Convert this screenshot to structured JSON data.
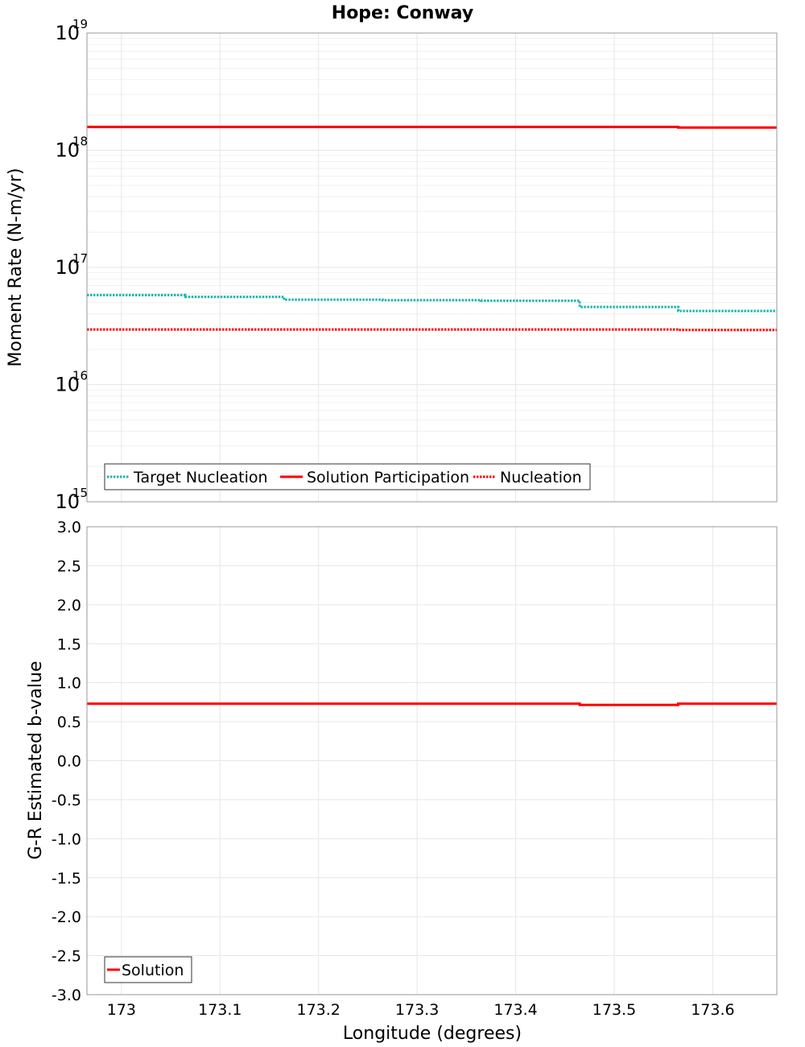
{
  "chart_data": [
    {
      "type": "line",
      "title": "Hope: Conway",
      "xlabel": "",
      "ylabel": "Moment Rate (N-m/yr)",
      "yscale": "log",
      "ylim": [
        1000000000000000.0,
        1e+19
      ],
      "xlim": [
        172.965,
        173.665
      ],
      "y_ticks": [
        {
          "base": "10",
          "exp": "15"
        },
        {
          "base": "10",
          "exp": "16"
        },
        {
          "base": "10",
          "exp": "17"
        },
        {
          "base": "10",
          "exp": "18"
        },
        {
          "base": "10",
          "exp": "19"
        }
      ],
      "bin_edges": [
        172.965,
        173.065,
        173.165,
        173.265,
        173.365,
        173.465,
        173.565,
        173.665
      ],
      "series": [
        {
          "name": "Target Nucleation",
          "color": "#1ab3b3",
          "style": "dotted",
          "values": [
            5.8e+16,
            5.6e+16,
            5.3e+16,
            5.25e+16,
            5.2e+16,
            4.6e+16,
            4.25e+16
          ]
        },
        {
          "name": "Solution Participation",
          "color": "#ff0000",
          "style": "solid",
          "values": [
            1.58e+18,
            1.58e+18,
            1.58e+18,
            1.58e+18,
            1.58e+18,
            1.58e+18,
            1.56e+18
          ]
        },
        {
          "name": "Nucleation",
          "color": "#ff0000",
          "style": "dotted",
          "values": [
            2.95e+16,
            2.95e+16,
            2.95e+16,
            2.95e+16,
            2.95e+16,
            2.95e+16,
            2.92e+16
          ]
        }
      ],
      "legend": [
        "Target Nucleation",
        "Solution Participation",
        "Nucleation"
      ],
      "legend_position": "bottom-left",
      "grid": true
    },
    {
      "type": "line",
      "title": "",
      "xlabel": "Longitude (degrees)",
      "ylabel": "G-R Estimated b-value",
      "ylim": [
        -3.0,
        3.0
      ],
      "xlim": [
        172.965,
        173.665
      ],
      "y_tick_labels": [
        "3.0",
        "2.5",
        "2.0",
        "1.5",
        "1.0",
        "0.5",
        "0.0",
        "-0.5",
        "-1.0",
        "-1.5",
        "-2.0",
        "-2.5",
        "-3.0"
      ],
      "x_tick_values": [
        173.0,
        173.1,
        173.2,
        173.3,
        173.4,
        173.5,
        173.6
      ],
      "x_tick_labels": [
        "173",
        "173.1",
        "173.2",
        "173.3",
        "173.4",
        "173.5",
        "173.6"
      ],
      "bin_edges": [
        172.965,
        173.065,
        173.165,
        173.265,
        173.365,
        173.465,
        173.565,
        173.665
      ],
      "series": [
        {
          "name": "Solution",
          "color": "#ff0000",
          "style": "solid",
          "values": [
            0.73,
            0.73,
            0.73,
            0.73,
            0.73,
            0.715,
            0.73
          ]
        }
      ],
      "legend": [
        "Solution"
      ],
      "legend_position": "bottom-left",
      "grid": true
    }
  ]
}
